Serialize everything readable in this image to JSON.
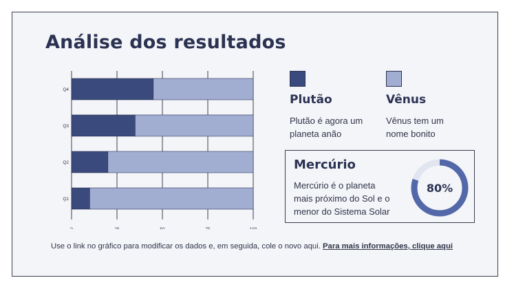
{
  "title": "Análise dos resultados",
  "colors": {
    "dark": "#3a4a7c",
    "light": "#a1aed2",
    "text": "#2b3252"
  },
  "chart_data": {
    "type": "bar",
    "orientation": "horizontal",
    "stacked": true,
    "categories": [
      "Q1",
      "Q2",
      "Q3",
      "Q4"
    ],
    "series": [
      {
        "name": "Plutão",
        "values": [
          10,
          20,
          35,
          45
        ]
      },
      {
        "name": "Vênus",
        "values": [
          90,
          80,
          65,
          55
        ]
      }
    ],
    "xticks": [
      "0",
      "25",
      "50",
      "75",
      "100"
    ],
    "xlim": [
      0,
      100
    ],
    "grid": true
  },
  "legend": [
    {
      "title": "Plutão",
      "desc_line1": "Plutão é agora um",
      "desc_line2": "planeta anão"
    },
    {
      "title": "Vênus",
      "desc_line1": "Vênus tem um",
      "desc_line2": "nome bonito"
    }
  ],
  "mercurio": {
    "title": "Mercúrio",
    "desc_line1": "Mercúrio é o planeta",
    "desc_line2": "mais próximo do Sol e o",
    "desc_line3": "menor do Sistema Solar",
    "percent_label": "80%",
    "percent_value": 0.8
  },
  "footer": {
    "text": "Use o link no gráfico para modificar os dados e, em seguida, cole o novo aqui. ",
    "link": "Para mais informações, clique aqui"
  }
}
